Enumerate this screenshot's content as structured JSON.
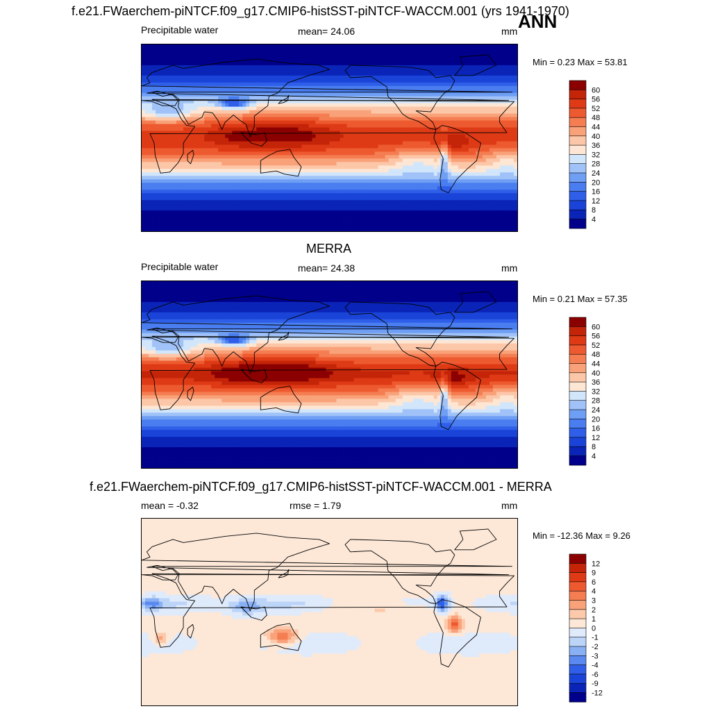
{
  "header": {
    "run_title": "f.e21.FWaerchem-piNTCF.f09_g17.CMIP6-histSST-piNTCF-WACCM.001 (yrs 1941-1970)",
    "season": "ANN"
  },
  "colors": {
    "abs_palette": [
      "#00008b",
      "#0a24b8",
      "#1a44d8",
      "#2f5fe8",
      "#4a7ef0",
      "#6e9ff4",
      "#a0c2f8",
      "#d2e6fb",
      "#fde6d4",
      "#fcc7a8",
      "#f9a27a",
      "#f57d52",
      "#ee5a30",
      "#de3a16",
      "#c42408",
      "#8b0000"
    ],
    "diff_palette": [
      "#00008b",
      "#0a24b8",
      "#1a44d8",
      "#2f5fe8",
      "#5a8af0",
      "#8ab0f4",
      "#bcd4f8",
      "#dfeafb",
      "#fde8d8",
      "#fcc9ab",
      "#f9a27a",
      "#f57d52",
      "#ee5a30",
      "#de3a16",
      "#c42408",
      "#8b0000"
    ]
  },
  "chart_data": [
    {
      "type": "heatmap",
      "title": "f.e21.FWaerchem-piNTCF.f09_g17.CMIP6-histSST-piNTCF-WACCM.001 (yrs 1941-1970)",
      "variable": "Precipitable water",
      "mean_label": "mean=  24.06",
      "units": "mm",
      "minmax_label": "Min =   0.23 Max =  53.81",
      "min": 0.23,
      "max": 53.81,
      "levels": [
        "60",
        "56",
        "52",
        "48",
        "44",
        "40",
        "36",
        "32",
        "28",
        "24",
        "20",
        "16",
        "12",
        "8",
        "4"
      ]
    },
    {
      "type": "heatmap",
      "title": "MERRA",
      "variable": "Precipitable water",
      "mean_label": "mean=  24.38",
      "units": "mm",
      "minmax_label": "Min =   0.21 Max =  57.35",
      "min": 0.21,
      "max": 57.35,
      "levels": [
        "60",
        "56",
        "52",
        "48",
        "44",
        "40",
        "36",
        "32",
        "28",
        "24",
        "20",
        "16",
        "12",
        "8",
        "4"
      ]
    },
    {
      "type": "heatmap",
      "title": "f.e21.FWaerchem-piNTCF.f09_g17.CMIP6-histSST-piNTCF-WACCM.001 - MERRA",
      "mean_label": "mean =  -0.32",
      "rmse_label": "rmse =   1.79",
      "units": "mm",
      "minmax_label": "Min = -12.36 Max =   9.26",
      "min": -12.36,
      "max": 9.26,
      "levels": [
        "12",
        "9",
        "6",
        "4",
        "3",
        "2",
        "1",
        "0",
        "-1",
        "-2",
        "-3",
        "-4",
        "-6",
        "-9",
        "-12"
      ]
    }
  ]
}
